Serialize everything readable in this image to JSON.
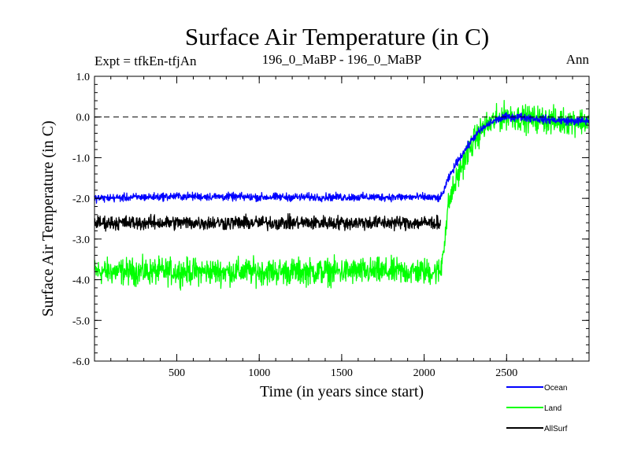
{
  "chart_data": {
    "type": "line",
    "title": "Surface Air Temperature (in C)",
    "subtitle_left": "Expt = tfkEn-tfjAn",
    "subtitle_center": "196_0_MaBP - 196_0_MaBP",
    "subtitle_right": "Ann",
    "xlabel": "Time (in years since start)",
    "ylabel": "Surface Air Temperature (in C)",
    "xlim": [
      1,
      3000
    ],
    "ylim": [
      -6.0,
      1.0
    ],
    "x_ticks": [
      500,
      1000,
      1500,
      2000,
      2500
    ],
    "x_tick_labels": [
      "500",
      "1000",
      "1500",
      "2000",
      "2500"
    ],
    "y_ticks": [
      1.0,
      0.0,
      -1.0,
      -2.0,
      -3.0,
      -4.0,
      -5.0,
      -6.0
    ],
    "y_tick_labels": [
      "1.0",
      "0.0",
      "-1.0",
      "-2.0",
      "-3.0",
      "-4.0",
      "-5.0",
      "-6.0"
    ],
    "reference_line": {
      "y": 0.0,
      "style": "dashed",
      "color": "#000000"
    },
    "legend_position": "bottom-right, below plot",
    "series": [
      {
        "name": "Land",
        "color": "#00ff00",
        "noise_amplitude": 0.3,
        "x": [
          1,
          500,
          1000,
          1500,
          2000,
          2100,
          2150,
          2200,
          2250,
          2300,
          2350,
          2400,
          2450,
          2500,
          2600,
          2700,
          2800,
          2900,
          3000
        ],
        "values": [
          -3.8,
          -3.8,
          -3.8,
          -3.8,
          -3.8,
          -3.8,
          -2.1,
          -1.5,
          -1.0,
          -0.6,
          -0.3,
          -0.15,
          -0.05,
          0.05,
          -0.05,
          -0.05,
          -0.1,
          -0.1,
          -0.1
        ]
      },
      {
        "name": "Ocean",
        "color": "#0000ff",
        "noise_amplitude": 0.09,
        "x": [
          1,
          500,
          1000,
          1500,
          2000,
          2100,
          2150,
          2200,
          2250,
          2300,
          2350,
          2400,
          2450,
          2500,
          2600,
          2700,
          2800,
          2900,
          3000
        ],
        "values": [
          -2.0,
          -1.95,
          -1.97,
          -1.97,
          -1.97,
          -2.0,
          -1.5,
          -1.1,
          -0.8,
          -0.5,
          -0.3,
          -0.15,
          -0.05,
          0.0,
          0.0,
          -0.05,
          -0.08,
          -0.1,
          -0.1
        ]
      },
      {
        "name": "AllSurf",
        "color": "#000000",
        "noise_amplitude": 0.16,
        "x": [
          1,
          500,
          1000,
          1500,
          2000,
          2100
        ],
        "values": [
          -2.6,
          -2.6,
          -2.6,
          -2.6,
          -2.6,
          -2.6
        ]
      }
    ]
  }
}
